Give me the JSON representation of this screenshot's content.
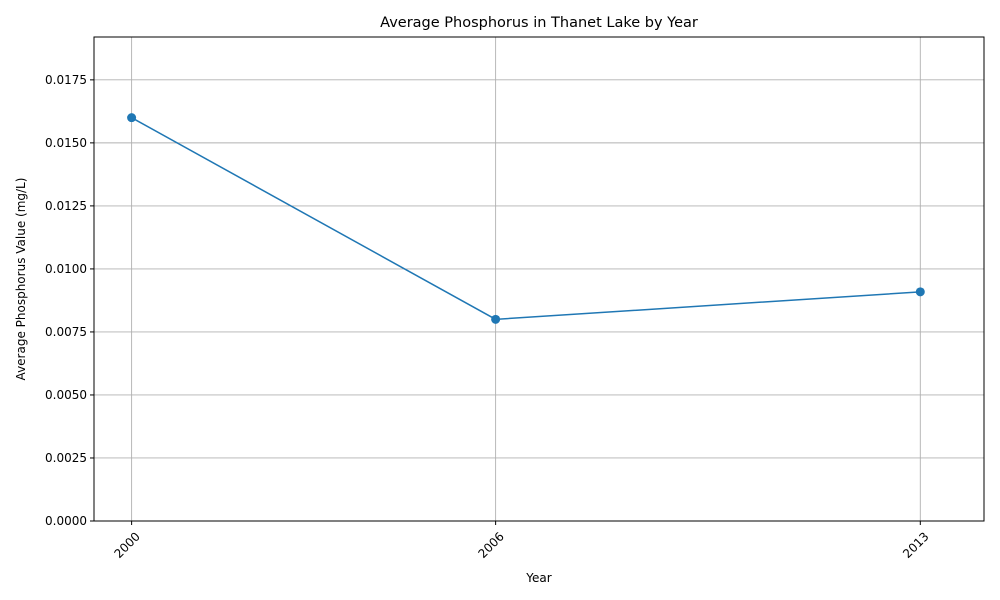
{
  "chart_data": {
    "type": "line",
    "title": "Average Phosphorus in Thanet Lake by Year",
    "xlabel": "Year",
    "ylabel": "Average Phosphorus Value (mg/L)",
    "x": [
      2000,
      2006,
      2013
    ],
    "x_tick_labels": [
      "2000",
      "2006",
      "2013"
    ],
    "series": [
      {
        "values": [
          0.016,
          0.008,
          0.00909
        ],
        "color": "#1f77b4",
        "marker": "circle"
      }
    ],
    "xlim": [
      1999.38,
      2014.05
    ],
    "ylim": [
      0,
      0.0192
    ],
    "y_ticks": [
      0,
      0.0025,
      0.005,
      0.0075,
      0.01,
      0.0125,
      0.015,
      0.0175
    ],
    "y_tick_labels": [
      "0.0000",
      "0.0025",
      "0.0050",
      "0.0075",
      "0.0100",
      "0.0125",
      "0.0150",
      "0.0175"
    ],
    "x_tick_rotation": 45,
    "grid": true,
    "legend": false
  }
}
